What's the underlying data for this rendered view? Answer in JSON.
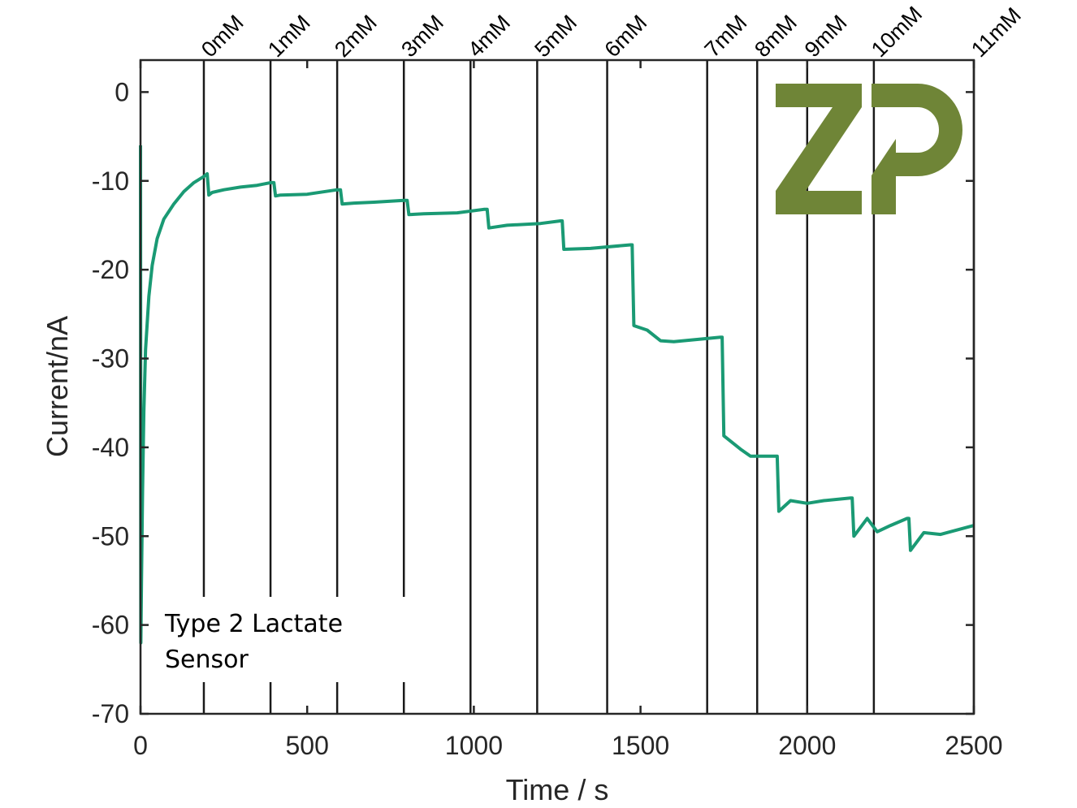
{
  "chart_data": {
    "type": "line",
    "xlabel": "Time / s",
    "ylabel": "Current/nA",
    "xlim": [
      0,
      2500
    ],
    "ylim": [
      -70,
      3.6
    ],
    "xticks": [
      0,
      500,
      1000,
      1500,
      2000,
      2500
    ],
    "yticks": [
      0,
      -10,
      -20,
      -30,
      -40,
      -50,
      -60,
      -70
    ],
    "grid": false,
    "line_color": "#1a9a74",
    "annotation": [
      "Type 2 Lactate",
      "Sensor"
    ],
    "markers": [
      {
        "label": "0mM",
        "x": 190
      },
      {
        "label": "1mM",
        "x": 390
      },
      {
        "label": "2mM",
        "x": 590
      },
      {
        "label": "3mM",
        "x": 790
      },
      {
        "label": "4mM",
        "x": 990
      },
      {
        "label": "5mM",
        "x": 1190
      },
      {
        "label": "6mM",
        "x": 1400
      },
      {
        "label": "7mM",
        "x": 1700
      },
      {
        "label": "8mM",
        "x": 1850
      },
      {
        "label": "9mM",
        "x": 2000
      },
      {
        "label": "10mM",
        "x": 2200
      },
      {
        "label": "11mM",
        "x": 2500
      }
    ],
    "series": [
      {
        "x": [
          0,
          1,
          3,
          6,
          10,
          15,
          25,
          35,
          50,
          70,
          100,
          130,
          160,
          190,
          200,
          205,
          215,
          250,
          300,
          350,
          390,
          400,
          405,
          420,
          500,
          590,
          600,
          605,
          640,
          700,
          790,
          800,
          805,
          850,
          950,
          1030,
          1040,
          1045,
          1100,
          1200,
          1260,
          1265,
          1270,
          1350,
          1470,
          1475,
          1480,
          1520,
          1560,
          1600,
          1740,
          1745,
          1750,
          1800,
          1830,
          1905,
          1910,
          1915,
          1950,
          2000,
          2050,
          2130,
          2135,
          2140,
          2180,
          2210,
          2250,
          2300,
          2305,
          2310,
          2350,
          2400,
          2450,
          2500
        ],
        "y": [
          -6,
          -62,
          -55,
          -45,
          -36,
          -29,
          -23,
          -19.5,
          -16.5,
          -14.3,
          -12.6,
          -11.2,
          -10.2,
          -9.5,
          -9.2,
          -11.6,
          -11.3,
          -11,
          -10.7,
          -10.5,
          -10.2,
          -10.2,
          -11.7,
          -11.6,
          -11.5,
          -11,
          -11,
          -12.6,
          -12.5,
          -12.4,
          -12.2,
          -12.2,
          -13.8,
          -13.7,
          -13.6,
          -13.2,
          -13.2,
          -15.3,
          -15.0,
          -14.8,
          -14.5,
          -14.5,
          -17.7,
          -17.6,
          -17.2,
          -17.2,
          -26.3,
          -26.8,
          -28.0,
          -28.1,
          -27.6,
          -27.6,
          -38.7,
          -40.2,
          -41.0,
          -41.0,
          -41.0,
          -47.2,
          -46.0,
          -46.3,
          -46.0,
          -45.7,
          -45.7,
          -50.0,
          -48.0,
          -49.5,
          -48.8,
          -48.0,
          -48.0,
          -51.6,
          -49.6,
          -49.8,
          -49.3,
          -48.8
        ]
      }
    ]
  },
  "logo": {
    "text": "ZP",
    "color": "#6f8537"
  }
}
